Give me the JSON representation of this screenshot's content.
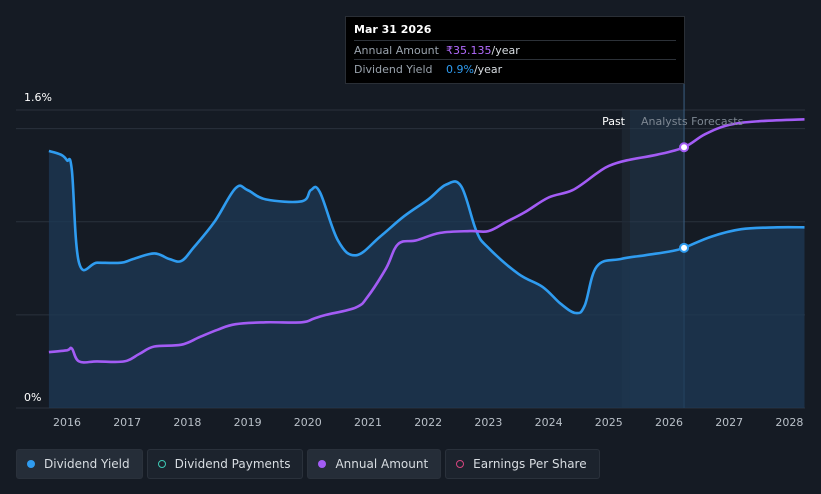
{
  "tooltip": {
    "date": "Mar 31 2026",
    "annual_amount_label": "Annual Amount",
    "annual_amount_value": "₹35.135",
    "annual_amount_unit": "/year",
    "dividend_yield_label": "Dividend Yield",
    "dividend_yield_value": "0.9%",
    "dividend_yield_unit": "/year"
  },
  "regions": {
    "past_label": "Past",
    "forecast_label": "Analysts Forecasts"
  },
  "colors": {
    "dividend_yield": "#2f9cf0",
    "annual_amount": "#a35cf5",
    "dividend_payments": "#3ec9b5",
    "earnings_per_share": "#d6457f",
    "background": "#151b24"
  },
  "legend": [
    {
      "label": "Dividend Yield",
      "color": "#2f9cf0",
      "style": "filled",
      "active": true
    },
    {
      "label": "Dividend Payments",
      "color": "#3ec9b5",
      "style": "hollow",
      "active": false
    },
    {
      "label": "Annual Amount",
      "color": "#a35cf5",
      "style": "filled",
      "active": true
    },
    {
      "label": "Earnings Per Share",
      "color": "#d6457f",
      "style": "hollow",
      "active": false
    }
  ],
  "chart_data": {
    "type": "line",
    "title": "",
    "xlabel": "",
    "ylabel": "",
    "x_ticks": [
      "2016",
      "2017",
      "2018",
      "2019",
      "2020",
      "2021",
      "2022",
      "2023",
      "2024",
      "2025",
      "2026",
      "2027",
      "2028"
    ],
    "y_ticks": [
      "0%",
      "1.6%"
    ],
    "xlim": [
      2015.7,
      2028.25
    ],
    "ylim": [
      0,
      1.6
    ],
    "grid": true,
    "forecast_start": 2025.35,
    "highlight_x": 2026.25,
    "series": [
      {
        "name": "Dividend Yield",
        "unit": "%",
        "points": [
          [
            2015.7,
            1.38
          ],
          [
            2015.9,
            1.36
          ],
          [
            2016.0,
            1.33
          ],
          [
            2016.08,
            1.28
          ],
          [
            2016.2,
            0.78
          ],
          [
            2016.5,
            0.78
          ],
          [
            2016.9,
            0.78
          ],
          [
            2017.1,
            0.8
          ],
          [
            2017.45,
            0.83
          ],
          [
            2017.7,
            0.8
          ],
          [
            2017.9,
            0.79
          ],
          [
            2018.1,
            0.86
          ],
          [
            2018.45,
            1.0
          ],
          [
            2018.8,
            1.18
          ],
          [
            2019.0,
            1.17
          ],
          [
            2019.3,
            1.12
          ],
          [
            2019.9,
            1.11
          ],
          [
            2020.05,
            1.17
          ],
          [
            2020.2,
            1.16
          ],
          [
            2020.5,
            0.9
          ],
          [
            2020.8,
            0.82
          ],
          [
            2021.2,
            0.92
          ],
          [
            2021.6,
            1.03
          ],
          [
            2022.0,
            1.12
          ],
          [
            2022.3,
            1.2
          ],
          [
            2022.55,
            1.19
          ],
          [
            2022.8,
            0.95
          ],
          [
            2023.0,
            0.86
          ],
          [
            2023.5,
            0.72
          ],
          [
            2023.9,
            0.65
          ],
          [
            2024.2,
            0.56
          ],
          [
            2024.45,
            0.51
          ],
          [
            2024.6,
            0.55
          ],
          [
            2024.8,
            0.76
          ],
          [
            2025.2,
            0.8
          ],
          [
            2025.6,
            0.82
          ],
          [
            2026.0,
            0.84
          ],
          [
            2026.25,
            0.86
          ],
          [
            2026.7,
            0.92
          ],
          [
            2027.2,
            0.96
          ],
          [
            2027.8,
            0.97
          ],
          [
            2028.25,
            0.97
          ]
        ]
      },
      {
        "name": "Annual Amount",
        "unit": "₹/year",
        "points": [
          [
            2015.7,
            0.3
          ],
          [
            2016.0,
            0.31
          ],
          [
            2016.08,
            0.32
          ],
          [
            2016.2,
            0.25
          ],
          [
            2016.5,
            0.25
          ],
          [
            2016.95,
            0.25
          ],
          [
            2017.2,
            0.29
          ],
          [
            2017.45,
            0.33
          ],
          [
            2017.9,
            0.34
          ],
          [
            2018.2,
            0.38
          ],
          [
            2018.5,
            0.42
          ],
          [
            2018.8,
            0.45
          ],
          [
            2019.3,
            0.46
          ],
          [
            2019.9,
            0.46
          ],
          [
            2020.1,
            0.48
          ],
          [
            2020.3,
            0.5
          ],
          [
            2020.8,
            0.54
          ],
          [
            2021.0,
            0.6
          ],
          [
            2021.3,
            0.75
          ],
          [
            2021.5,
            0.88
          ],
          [
            2021.8,
            0.9
          ],
          [
            2022.2,
            0.94
          ],
          [
            2022.7,
            0.95
          ],
          [
            2023.0,
            0.95
          ],
          [
            2023.3,
            1.0
          ],
          [
            2023.6,
            1.05
          ],
          [
            2024.0,
            1.13
          ],
          [
            2024.4,
            1.17
          ],
          [
            2024.8,
            1.26
          ],
          [
            2025.0,
            1.3
          ],
          [
            2025.3,
            1.33
          ],
          [
            2025.8,
            1.36
          ],
          [
            2026.25,
            1.4
          ],
          [
            2026.6,
            1.47
          ],
          [
            2027.0,
            1.52
          ],
          [
            2027.5,
            1.54
          ],
          [
            2028.25,
            1.55
          ]
        ]
      }
    ]
  }
}
